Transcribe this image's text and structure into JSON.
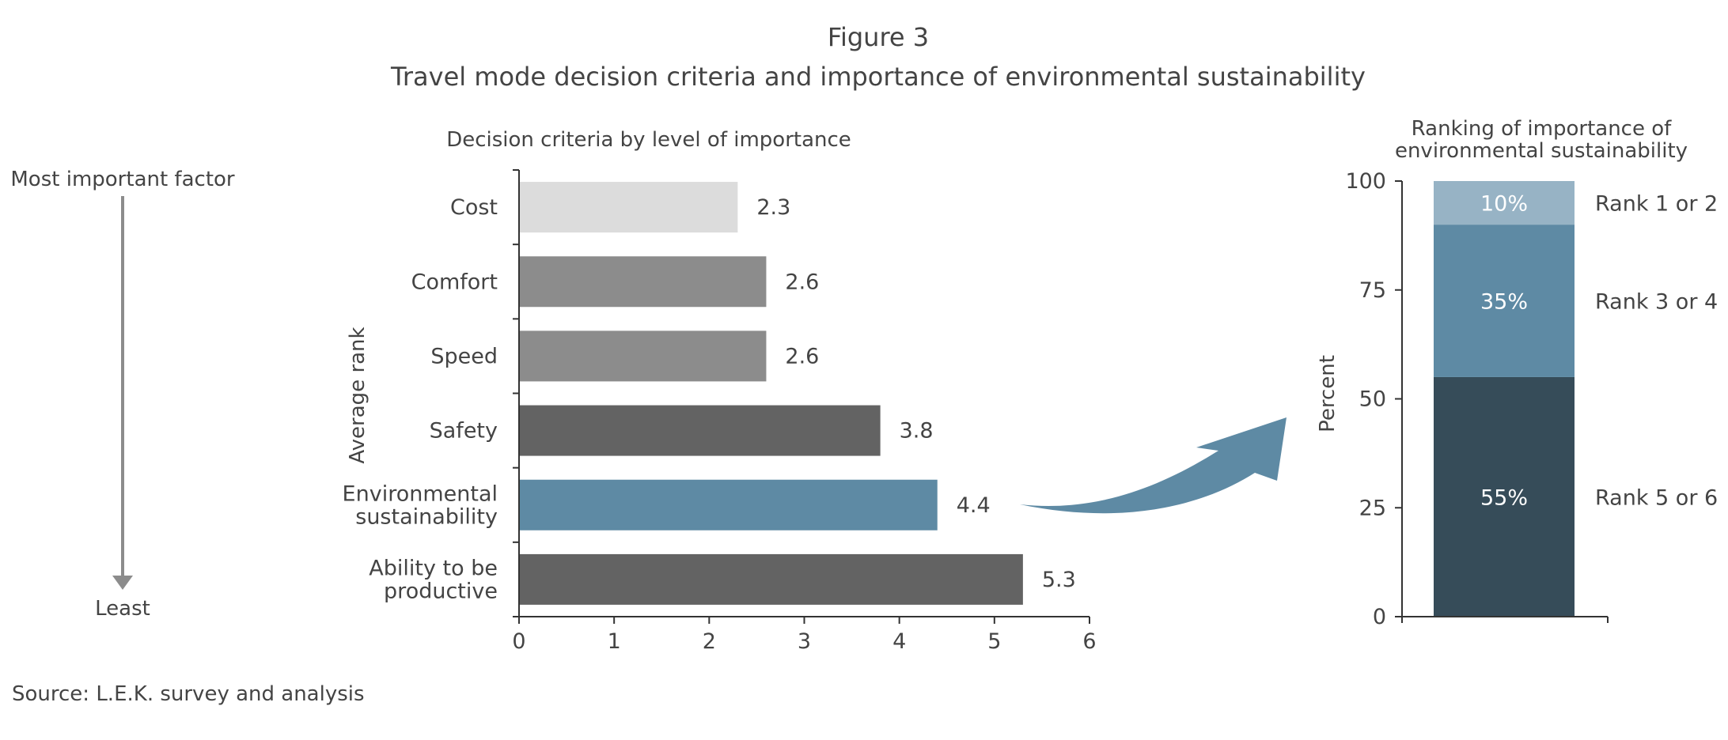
{
  "figure": {
    "title": "Figure 3",
    "subtitle": "Travel mode decision criteria and importance of environmental sustainability",
    "source": "Source: L.E.K. survey and analysis"
  },
  "scale": {
    "top_label": "Most important factor",
    "bottom_label": "Least"
  },
  "colors": {
    "cost": "#dcdcdc",
    "comfort_speed": "#8c8c8c",
    "safety_productive": "#636363",
    "environment": "#5e8aa4",
    "rank_1_2": "#97b3c5",
    "rank_3_4": "#5e8aa4",
    "rank_5_6": "#364c59",
    "axis": "#333333",
    "arrow": "#5e8aa4",
    "scale_arrow": "#8c8c8c"
  },
  "chart_data": [
    {
      "type": "bar",
      "orientation": "horizontal",
      "title": "Decision criteria by level of importance",
      "xlabel": "",
      "ylabel": "Average rank",
      "categories": [
        [
          "Cost"
        ],
        [
          "Comfort"
        ],
        [
          "Speed"
        ],
        [
          "Safety"
        ],
        [
          "Environmental",
          "sustainability"
        ],
        [
          "Ability to be",
          "productive"
        ]
      ],
      "values": [
        2.3,
        2.6,
        2.6,
        3.8,
        4.4,
        5.3
      ],
      "value_labels": [
        "2.3",
        "2.6",
        "2.6",
        "3.8",
        "4.4",
        "5.3"
      ],
      "bar_colors": [
        "#dcdcdc",
        "#8c8c8c",
        "#8c8c8c",
        "#636363",
        "#5e8aa4",
        "#636363"
      ],
      "xlim": [
        0,
        6
      ],
      "xticks": [
        0,
        1,
        2,
        3,
        4,
        5,
        6
      ],
      "grid": false
    },
    {
      "type": "bar",
      "stacked": true,
      "title": [
        "Ranking of importance of",
        "environmental sustainability"
      ],
      "ylabel": "Percent",
      "ylim": [
        0,
        100
      ],
      "yticks": [
        0,
        25,
        50,
        75,
        100
      ],
      "series": [
        {
          "name": "Rank 5 or 6",
          "value": 55,
          "label": "55%",
          "color": "#364c59"
        },
        {
          "name": "Rank 3 or 4",
          "value": 35,
          "label": "35%",
          "color": "#5e8aa4"
        },
        {
          "name": "Rank 1 or 2",
          "value": 10,
          "label": "10%",
          "color": "#97b3c5"
        }
      ],
      "grid": false
    }
  ]
}
